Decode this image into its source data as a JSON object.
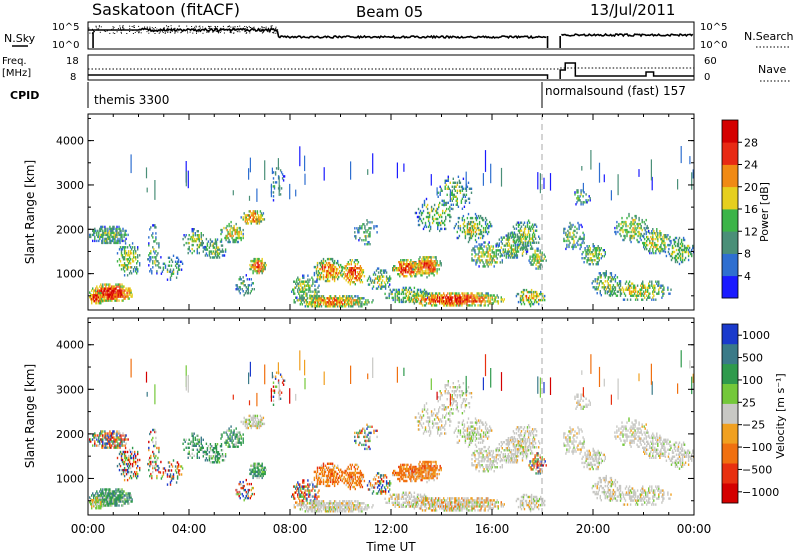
{
  "header": {
    "station": "Saskatoon (fitACF)",
    "beam": "Beam 05",
    "date": "13/Jul/2011"
  },
  "top_panels": {
    "nsky_label": "N.Sky",
    "nsky_ticks": [
      "10^5",
      "10^0"
    ],
    "nsearch_label": "N.Search",
    "nsearch_ticks": [
      "10^5",
      "10^0"
    ],
    "freq_label_1": "Freq.",
    "freq_label_2": "[MHz]",
    "freq_ticks": [
      "18",
      "8"
    ],
    "nave_label": "Nave",
    "nave_ticks": [
      "60",
      "0"
    ],
    "cpid_label": "CPID",
    "cpid_segments": [
      {
        "label": "themis 3300",
        "start_hour": 0,
        "end_hour": 18.2
      },
      {
        "label": "normalsound (fast) 157",
        "start_hour": 18.2,
        "end_hour": 24
      }
    ]
  },
  "chart_data": [
    {
      "type": "heatmap",
      "name": "power",
      "ylabel": "Slant Range [km]",
      "ylim": [
        180,
        4600
      ],
      "yticks": [
        "1000",
        "2000",
        "3000",
        "4000"
      ],
      "colorbar_label": "Power [dB]",
      "colorbar_ticks": [
        "4",
        "8",
        "12",
        "16",
        "20",
        "24",
        "28"
      ],
      "colorbar_colors": [
        "#1a1aff",
        "#2f6fd0",
        "#4a8f78",
        "#3cb448",
        "#e6cf1e",
        "#f08a14",
        "#e82a14",
        "#d40000"
      ],
      "data_gap_hours": [
        18.6,
        18.8
      ]
    },
    {
      "type": "heatmap",
      "name": "velocity",
      "ylabel": "Slant Range [km]",
      "ylim": [
        180,
        4600
      ],
      "yticks": [
        "1000",
        "2000",
        "3000",
        "4000"
      ],
      "colorbar_label": "Velocity [m s⁻¹]",
      "colorbar_ticks": [
        "1000",
        "500",
        "100",
        "25",
        "−25",
        "−100",
        "−500",
        "−1000"
      ],
      "colorbar_colors": [
        "#1a3acc",
        "#3a7a88",
        "#2f9a4c",
        "#74c83a",
        "#c8c8c4",
        "#f0a020",
        "#f07010",
        "#e83010",
        "#d40000"
      ],
      "xlabel": "Time UT",
      "xticks": [
        "00:00",
        "04:00",
        "08:00",
        "12:00",
        "16:00",
        "20:00",
        "00:00"
      ],
      "xlim_hours": [
        0,
        24
      ]
    }
  ]
}
